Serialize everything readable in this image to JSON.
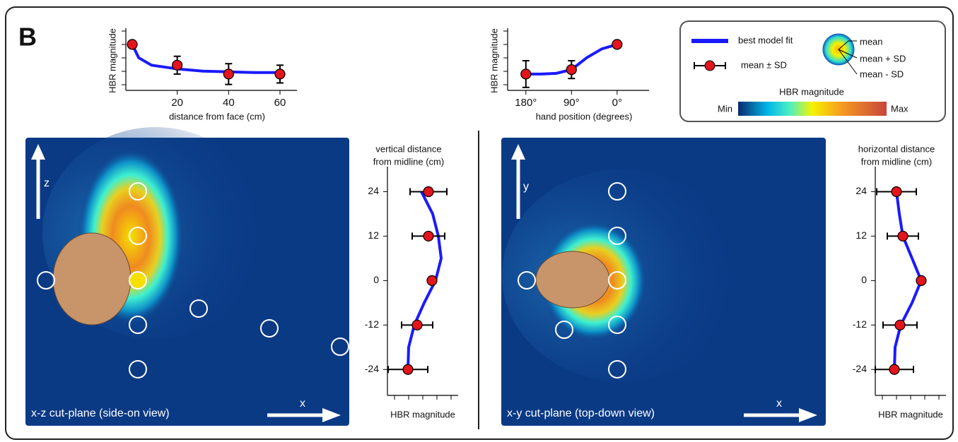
{
  "panel_label": "B",
  "legend": {
    "fit": "best model fit",
    "points": "mean ± SD",
    "mean": "mean",
    "mean_plus": "mean + SD",
    "mean_minus": "mean - SD",
    "colorbar_title": "HBR magnitude",
    "min": "Min",
    "max": "Max"
  },
  "maps": [
    {
      "label": "x-z cut-plane (side-on view)",
      "horizontal_axis": "x",
      "vertical_axis": "z"
    },
    {
      "label": "x-y cut-plane (top-down view)",
      "horizontal_axis": "x",
      "vertical_axis": "y"
    }
  ],
  "chart_data": [
    {
      "type": "line",
      "value_axis": "y",
      "xlabel": "distance from face (cm)",
      "ylabel": "HBR magnitude",
      "xlim": [
        0,
        66.6
      ],
      "xticks": [
        20,
        40,
        60
      ],
      "ylim": [
        1,
        5
      ],
      "line_color": "#1a1aff",
      "point_color": "#e3141c",
      "fit": {
        "x": [
          2.5,
          5,
          10,
          20,
          30,
          40,
          50,
          60
        ],
        "y": [
          4.1,
          3.2,
          2.7,
          2.45,
          2.3,
          2.25,
          2.2,
          2.2
        ]
      },
      "points": {
        "x": [
          2.5,
          20,
          40,
          60
        ],
        "y": [
          4.1,
          2.7,
          2.1,
          2.1
        ],
        "err": [
          0,
          0.6,
          0.7,
          0.6
        ]
      }
    },
    {
      "type": "line",
      "value_axis": "y",
      "xlabel": "hand position (degrees)",
      "ylabel": "HBR magnitude",
      "xlim": [
        216,
        -63
      ],
      "xticks": [
        {
          "value": 180,
          "label": "180°"
        },
        {
          "value": 90,
          "label": "90°"
        },
        {
          "value": 0,
          "label": "0°"
        }
      ],
      "ylim": [
        1,
        5
      ],
      "line_color": "#1a1aff",
      "point_color": "#e3141c",
      "fit": {
        "x": [
          180,
          150,
          120,
          90,
          60,
          30,
          0
        ],
        "y": [
          2.1,
          2.1,
          2.15,
          2.4,
          3.2,
          3.8,
          4.1
        ]
      },
      "points": {
        "x": [
          180,
          90,
          0
        ],
        "y": [
          2.1,
          2.4,
          4.1
        ],
        "err": [
          0.9,
          0.6,
          0
        ]
      }
    },
    {
      "type": "line",
      "value_axis": "x",
      "title": [
        "vertical distance",
        "from midline (cm)"
      ],
      "xlabel": "HBR magnitude",
      "xlim": [
        0,
        5
      ],
      "ylim": [
        -31,
        30
      ],
      "yticks": [
        24,
        12,
        0,
        -12,
        -24
      ],
      "line_color": "#1a1aff",
      "point_color": "#e3141c",
      "fit": {
        "x": [
          2.4,
          3.2,
          3.6,
          3.8,
          3.4,
          2.6,
          1.9,
          1.5,
          1.45
        ],
        "y": [
          24,
          18,
          12,
          6,
          0,
          -6,
          -12,
          -18,
          -24
        ]
      },
      "points": {
        "x": [
          2.9,
          2.9,
          3.15,
          2.1,
          1.45
        ],
        "y": [
          24,
          12,
          0,
          -12,
          -24
        ],
        "err": [
          1.3,
          1.15,
          0,
          1.1,
          1.4
        ]
      }
    },
    {
      "type": "line",
      "value_axis": "x",
      "title": [
        "horizontal distance",
        "from midline (cm)"
      ],
      "xlabel": "HBR magnitude",
      "xlim": [
        0,
        5
      ],
      "ylim": [
        -31,
        30
      ],
      "yticks": [
        24,
        12,
        0,
        -12,
        -24
      ],
      "line_color": "#1a1aff",
      "point_color": "#e3141c",
      "fit": {
        "x": [
          1.5,
          1.7,
          1.95,
          2.6,
          3.25,
          2.6,
          1.8,
          1.4,
          1.35
        ],
        "y": [
          24,
          18,
          12,
          6,
          0,
          -6,
          -12,
          -18,
          -24
        ]
      },
      "points": {
        "x": [
          1.5,
          1.95,
          3.25,
          1.75,
          1.35
        ],
        "y": [
          24,
          12,
          0,
          -12,
          -24
        ],
        "err": [
          1.4,
          1.1,
          0,
          1.2,
          1.35
        ]
      }
    }
  ]
}
